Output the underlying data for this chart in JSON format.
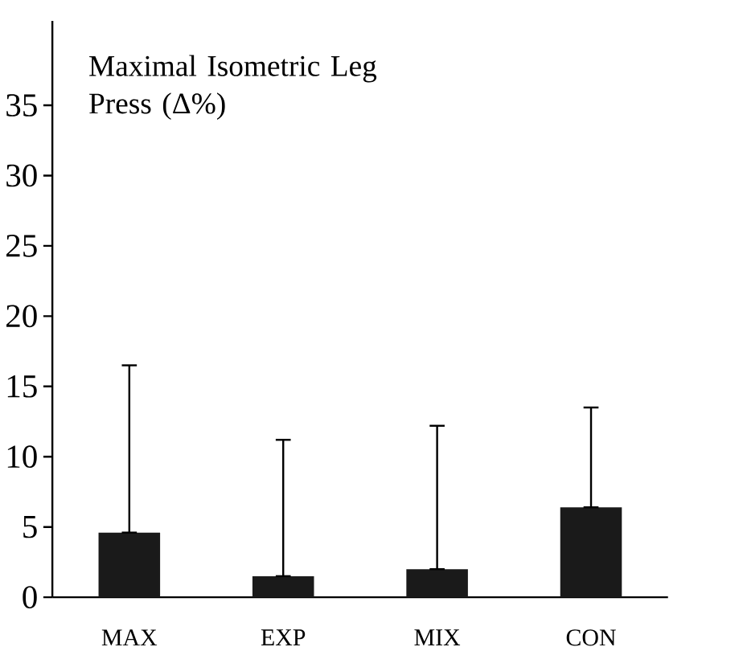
{
  "chart_data": {
    "type": "bar",
    "title": "Maximal Isometric Leg Press (Δ%)",
    "categories": [
      "MAX",
      "EXP",
      "MIX",
      "CON"
    ],
    "values": [
      4.6,
      1.5,
      2.0,
      6.4
    ],
    "errors": [
      [
        4.6,
        16.5
      ],
      [
        1.5,
        11.2
      ],
      [
        2.0,
        12.2
      ],
      [
        6.4,
        13.5
      ]
    ],
    "color": "#1a1a1a",
    "ylim": [
      0,
      41
    ],
    "yticks": [
      0,
      5,
      10,
      15,
      20,
      25,
      30,
      35
    ]
  }
}
